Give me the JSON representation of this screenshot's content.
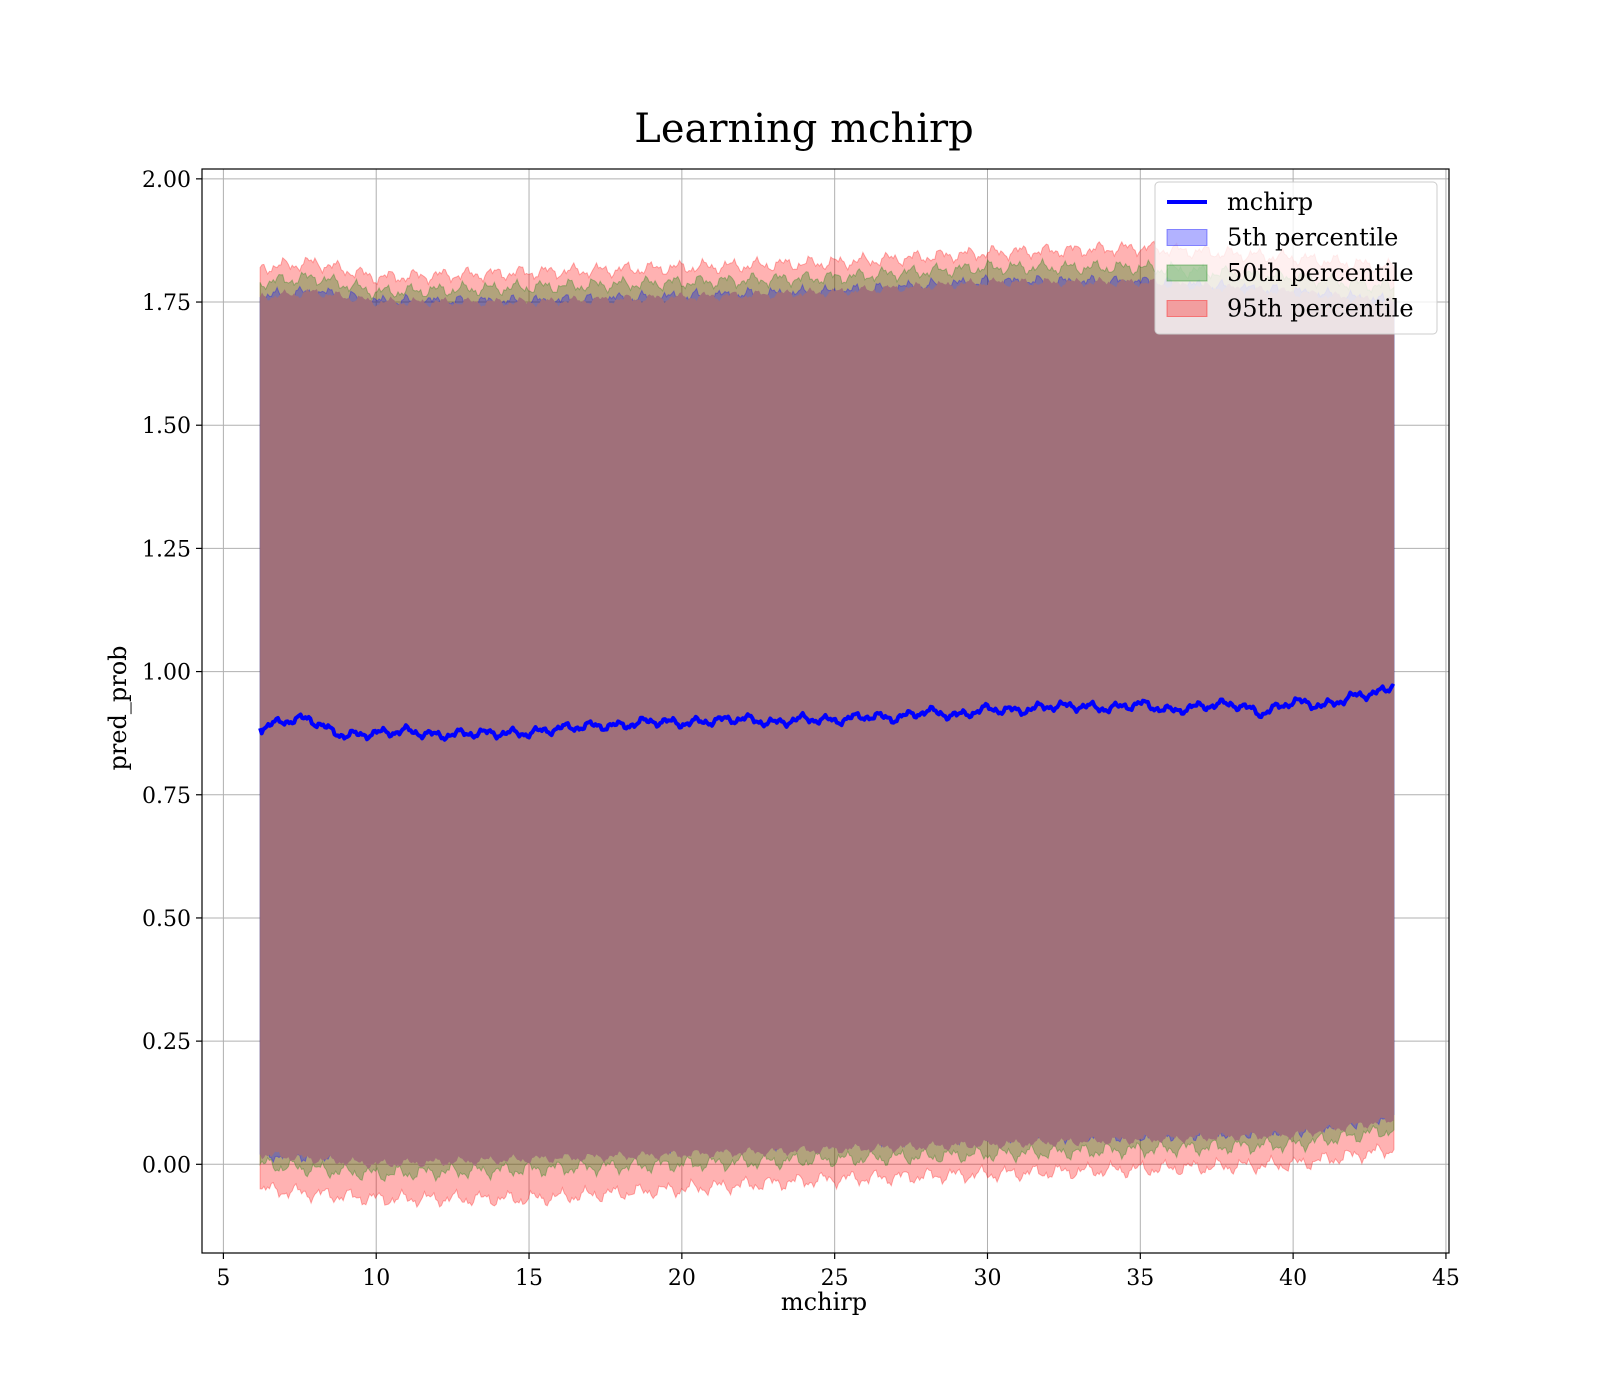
{
  "chart_data": {
    "type": "area",
    "title": "Learning mchirp",
    "xlabel": "mchirp",
    "ylabel": "pred_prob",
    "xlim": [
      4.3,
      45.1
    ],
    "ylim": [
      -0.18,
      2.02
    ],
    "x_ticks": [
      5,
      10,
      15,
      20,
      25,
      30,
      35,
      40,
      45
    ],
    "y_ticks": [
      0.0,
      0.25,
      0.5,
      0.75,
      1.0,
      1.25,
      1.5,
      1.75,
      2.0
    ],
    "y_tick_labels": [
      "0.00",
      "0.25",
      "0.50",
      "0.75",
      "1.00",
      "1.25",
      "1.50",
      "1.75",
      "2.00"
    ],
    "grid": true,
    "legend_position": "top-right",
    "colors": {
      "line": "#0000ff",
      "band_5th": "#0000ff",
      "band_50th": "#008000",
      "band_95th": "#ff0000",
      "band_dark": "#a0707a"
    },
    "series": [
      {
        "name": "mchirp",
        "kind": "line",
        "x": [
          6.2,
          7.0,
          7.8,
          8.5,
          9.0,
          10.0,
          11.0,
          12.0,
          13.0,
          14.0,
          15.0,
          16.0,
          17.0,
          18.0,
          19.0,
          20.0,
          21.0,
          22.0,
          23.0,
          24.0,
          25.0,
          26.0,
          27.0,
          28.0,
          29.0,
          30.0,
          31.0,
          32.0,
          33.0,
          34.0,
          35.0,
          36.0,
          37.0,
          38.0,
          39.0,
          40.0,
          41.0,
          42.0,
          43.0,
          43.3
        ],
        "y": [
          0.885,
          0.9,
          0.905,
          0.88,
          0.87,
          0.875,
          0.88,
          0.87,
          0.875,
          0.875,
          0.875,
          0.885,
          0.89,
          0.89,
          0.9,
          0.895,
          0.9,
          0.905,
          0.895,
          0.905,
          0.9,
          0.91,
          0.905,
          0.92,
          0.91,
          0.925,
          0.92,
          0.93,
          0.93,
          0.925,
          0.935,
          0.92,
          0.93,
          0.935,
          0.915,
          0.94,
          0.93,
          0.95,
          0.96,
          0.975
        ]
      },
      {
        "name": "5th percentile",
        "kind": "band",
        "x": [
          6.2,
          8.0,
          10.0,
          15.0,
          20.0,
          25.0,
          30.0,
          35.0,
          40.0,
          43.3
        ],
        "upper": [
          1.76,
          1.77,
          1.75,
          1.75,
          1.76,
          1.77,
          1.79,
          1.79,
          1.77,
          1.75
        ],
        "lower": [
          0.02,
          0.02,
          0.03,
          0.03,
          0.04,
          0.05,
          0.06,
          0.06,
          0.07,
          0.1
        ]
      },
      {
        "name": "50th percentile",
        "kind": "band",
        "x": [
          6.2,
          8.0,
          10.0,
          15.0,
          20.0,
          25.0,
          30.0,
          35.0,
          40.0,
          43.3
        ],
        "upper": [
          1.79,
          1.8,
          1.77,
          1.78,
          1.79,
          1.8,
          1.82,
          1.82,
          1.8,
          1.78
        ],
        "lower": [
          0.0,
          -0.01,
          -0.02,
          -0.01,
          0.0,
          0.01,
          0.02,
          0.03,
          0.04,
          0.07
        ]
      },
      {
        "name": "95th percentile",
        "kind": "band",
        "x": [
          6.2,
          8.0,
          10.0,
          15.0,
          20.0,
          25.0,
          30.0,
          35.0,
          40.0,
          43.3
        ],
        "upper": [
          1.82,
          1.83,
          1.8,
          1.81,
          1.82,
          1.83,
          1.85,
          1.86,
          1.84,
          1.82
        ],
        "lower": [
          -0.05,
          -0.06,
          -0.07,
          -0.07,
          -0.05,
          -0.03,
          -0.02,
          -0.01,
          0.0,
          0.03
        ]
      }
    ]
  }
}
